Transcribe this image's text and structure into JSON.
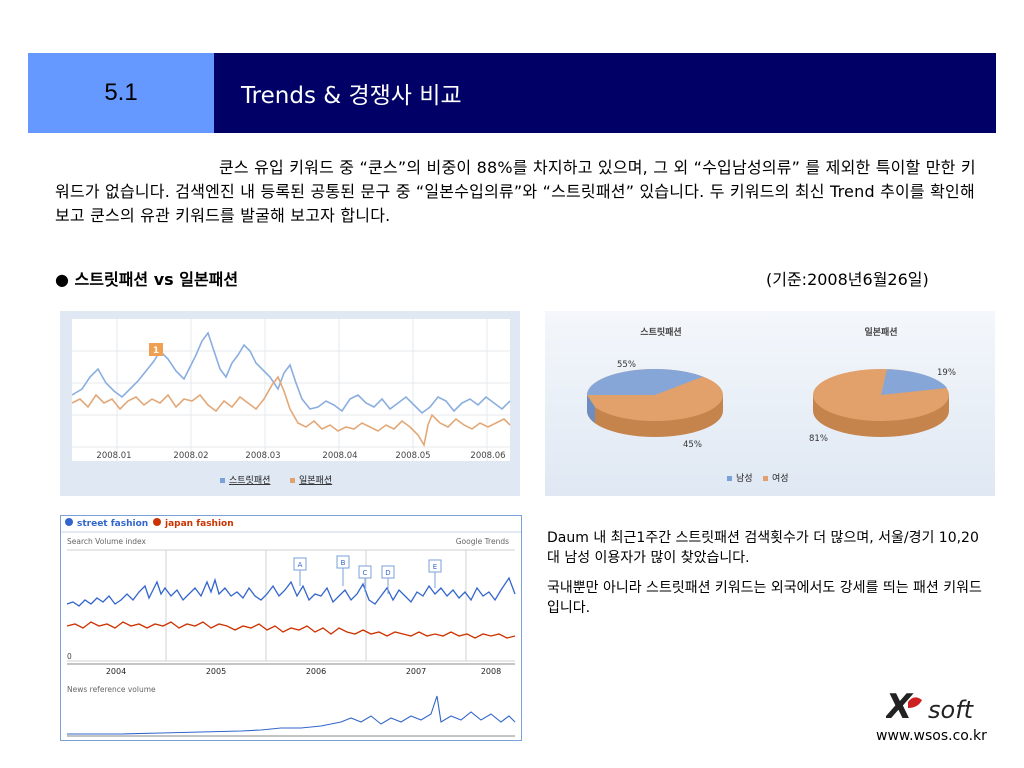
{
  "header": {
    "section": "5.1",
    "title": "Trends & 경쟁사 비교"
  },
  "intro": "쿤스 유입 키워드 중 “쿤스”의 비중이 88%를 차지하고 있으며, 그 외 “수입남성의류” 를 제외한 특이할 만한 키워드가 없습니다. 검색엔진 내 등록된 공통된 문구 중 “일본수입의류”와 “스트릿패션” 있습니다. 두 키워드의 최신 Trend 추이를 확인해 보고 쿤스의 유관 키워드를 발굴해 보고자 합니다.",
  "subhead": {
    "bullet": "●",
    "label": "스트릿패션 vs 일본패션"
  },
  "asof": "(기준:2008년6월26일)",
  "colors": {
    "section_bg": "#6699ff",
    "title_bg": "#000066",
    "blue_series": "#7aa0d8",
    "orange_series": "#e0a070",
    "google_blue": "#3366cc",
    "google_red": "#cc3300"
  },
  "trend_chart": {
    "months": [
      "2008.01",
      "2008.02",
      "2008.03",
      "2008.04",
      "2008.05",
      "2008.06"
    ],
    "marker": "1",
    "legend": [
      "스트릿패션",
      "일본패션"
    ]
  },
  "pie_chart": {
    "charts": [
      {
        "title": "스트릿패션",
        "labels": [
          "55%",
          "45%"
        ]
      },
      {
        "title": "일본패션",
        "labels": [
          "19%",
          "81%"
        ]
      }
    ],
    "legend": [
      "남성",
      "여성"
    ]
  },
  "google_trends": {
    "legend": [
      "street fashion",
      "japan fashion"
    ],
    "search_label": "Search Volume index",
    "brand": "Google Trends",
    "news_label": "News reference volume",
    "years": [
      "2004",
      "2005",
      "2006",
      "2007",
      "2008"
    ],
    "markers": [
      "A",
      "B",
      "C",
      "D",
      "E"
    ],
    "zero": "0"
  },
  "side_text": [
    "Daum 내 최근1주간 스트릿패션 검색횟수가 더 많으며, 서울/경기 10,20대 남성 이용자가 많이 찾았습니다.",
    "국내뿐만 아니라 스트릿패션 키워드는 외국에서도 강세를 띄는 패션 키워드 입니다."
  ],
  "footer": {
    "logo_x": "X",
    "logo_soft": "soft",
    "url": "www.wsos.co.kr"
  }
}
